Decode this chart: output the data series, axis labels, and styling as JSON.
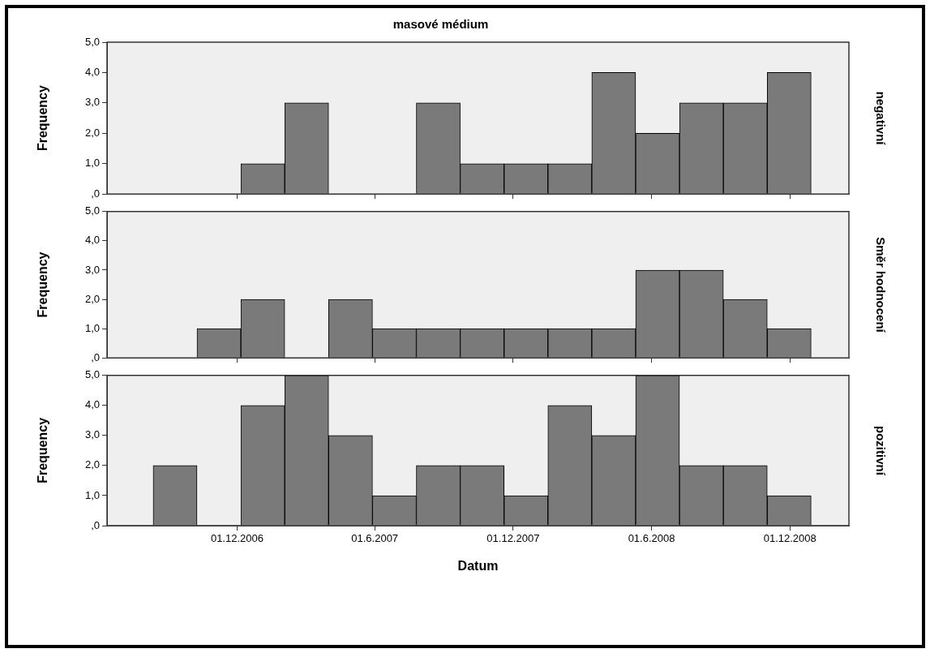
{
  "chart_data": [
    {
      "type": "histogram",
      "title": "masové médium",
      "ylabel": "Frequency",
      "y2label": "negativní",
      "bins": [
        "2006-08-12",
        "2006-10-09",
        "2006-12-06",
        "2007-02-02",
        "2007-04-01",
        "2007-05-29",
        "2007-07-26",
        "2007-09-22",
        "2007-11-19",
        "2008-01-16",
        "2008-03-14",
        "2008-05-11",
        "2008-07-08",
        "2008-09-04",
        "2008-11-01",
        "2008-12-29"
      ],
      "values": [
        0,
        0,
        1,
        3,
        0,
        0,
        3,
        1,
        1,
        1,
        4,
        2,
        3,
        3,
        4
      ],
      "color": "#7a7a7a",
      "xlim": [
        "2006-06-12",
        "2009-02-17"
      ],
      "xticks": [
        {
          "value": "2006-12-01",
          "label": null
        },
        {
          "value": "2007-06-01",
          "label": null
        },
        {
          "value": "2007-12-01",
          "label": null
        },
        {
          "value": "2008-06-01",
          "label": null
        },
        {
          "value": "2008-12-01",
          "label": null
        }
      ],
      "ylim": [
        0,
        5
      ],
      "yticks": [
        {
          "value": 0,
          "label": ",0"
        },
        {
          "value": 1,
          "label": "1,0"
        },
        {
          "value": 2,
          "label": "2,0"
        },
        {
          "value": 3,
          "label": "3,0"
        },
        {
          "value": 4,
          "label": "4,0"
        },
        {
          "value": 5,
          "label": "5,0"
        }
      ],
      "tick_labels": "y",
      "grid": false,
      "legend": false
    },
    {
      "type": "histogram",
      "ylabel": "Frequency",
      "y2label": "Směr hodnocení",
      "bins": [
        "2006-08-12",
        "2006-10-09",
        "2006-12-06",
        "2007-02-02",
        "2007-04-01",
        "2007-05-29",
        "2007-07-26",
        "2007-09-22",
        "2007-11-19",
        "2008-01-16",
        "2008-03-14",
        "2008-05-11",
        "2008-07-08",
        "2008-09-04",
        "2008-11-01",
        "2008-12-29"
      ],
      "values": [
        0,
        1,
        2,
        0,
        2,
        1,
        1,
        1,
        1,
        1,
        1,
        3,
        3,
        2,
        1
      ],
      "color": "#7a7a7a",
      "xlim": [
        "2006-06-12",
        "2009-02-17"
      ],
      "xticks": [
        {
          "value": "2006-12-01",
          "label": null
        },
        {
          "value": "2007-06-01",
          "label": null
        },
        {
          "value": "2007-12-01",
          "label": null
        },
        {
          "value": "2008-06-01",
          "label": null
        },
        {
          "value": "2008-12-01",
          "label": null
        }
      ],
      "ylim": [
        0,
        5
      ],
      "yticks": [
        {
          "value": 0,
          "label": ",0"
        },
        {
          "value": 1,
          "label": "1,0"
        },
        {
          "value": 2,
          "label": "2,0"
        },
        {
          "value": 3,
          "label": "3,0"
        },
        {
          "value": 4,
          "label": "4,0"
        },
        {
          "value": 5,
          "label": "5,0"
        }
      ],
      "tick_labels": "y",
      "grid": false,
      "legend": false
    },
    {
      "type": "histogram",
      "ylabel": "Frequency",
      "y2label": "pozitivní",
      "xlabel": "Datum",
      "bins": [
        "2006-08-12",
        "2006-10-09",
        "2006-12-06",
        "2007-02-02",
        "2007-04-01",
        "2007-05-29",
        "2007-07-26",
        "2007-09-22",
        "2007-11-19",
        "2008-01-16",
        "2008-03-14",
        "2008-05-11",
        "2008-07-08",
        "2008-09-04",
        "2008-11-01",
        "2008-12-29"
      ],
      "values": [
        2,
        0,
        4,
        5,
        3,
        1,
        2,
        2,
        1,
        4,
        3,
        5,
        2,
        2,
        1
      ],
      "color": "#7a7a7a",
      "xlim": [
        "2006-06-12",
        "2009-02-17"
      ],
      "xticks": [
        {
          "value": "2006-12-01",
          "label": "01.12.2006"
        },
        {
          "value": "2007-06-01",
          "label": "01.6.2007"
        },
        {
          "value": "2007-12-01",
          "label": "01.12.2007"
        },
        {
          "value": "2008-06-01",
          "label": "01.6.2008"
        },
        {
          "value": "2008-12-01",
          "label": "01.12.2008"
        }
      ],
      "ylim": [
        0,
        5
      ],
      "yticks": [
        {
          "value": 0,
          "label": ",0"
        },
        {
          "value": 1,
          "label": "1,0"
        },
        {
          "value": 2,
          "label": "2,0"
        },
        {
          "value": 3,
          "label": "3,0"
        },
        {
          "value": 4,
          "label": "4,0"
        },
        {
          "value": 5,
          "label": "5,0"
        }
      ],
      "grid": false,
      "legend": false
    }
  ]
}
